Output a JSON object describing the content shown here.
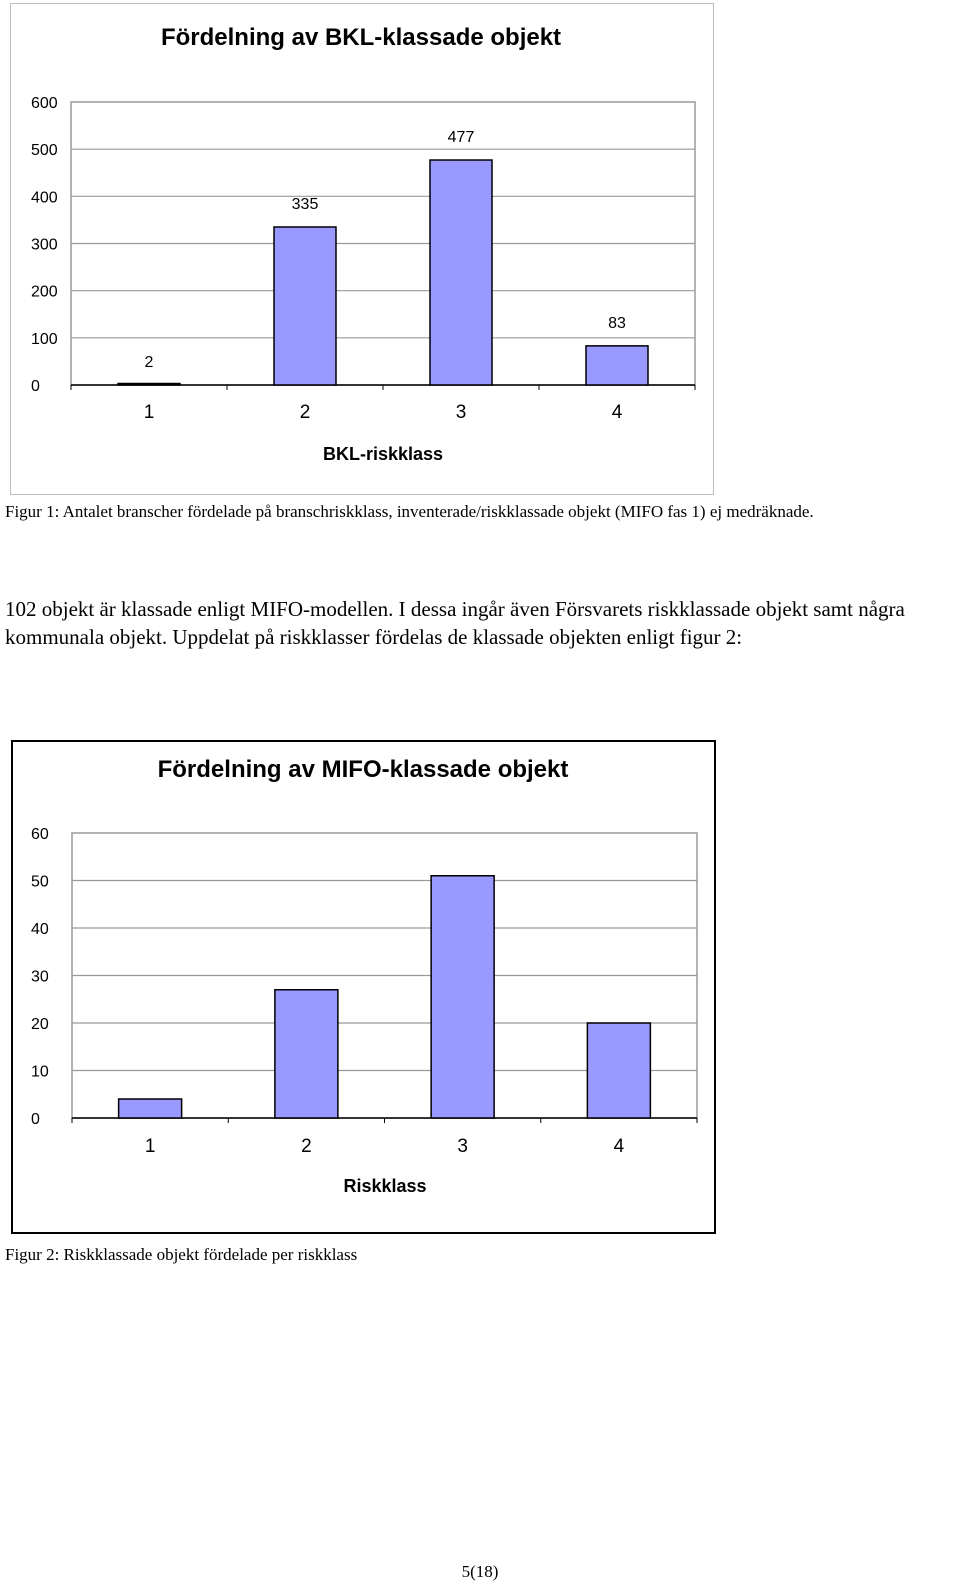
{
  "chart_data": [
    {
      "type": "bar",
      "title": "Fördelning av BKL-klassade objekt",
      "xlabel": "BKL-riskklass",
      "ylabel": "",
      "categories": [
        "1",
        "2",
        "3",
        "4"
      ],
      "values": [
        2,
        335,
        477,
        83
      ],
      "data_labels": [
        "2",
        "335",
        "477",
        "83"
      ],
      "ylim": [
        0,
        600
      ],
      "yticks": [
        "0",
        "100",
        "200",
        "300",
        "400",
        "500",
        "600"
      ],
      "grid": true,
      "legend": "none",
      "bar_color": "#9999ff"
    },
    {
      "type": "bar",
      "title": "Fördelning av MIFO-klassade objekt",
      "xlabel": "Riskklass",
      "ylabel": "",
      "categories": [
        "1",
        "2",
        "3",
        "4"
      ],
      "values": [
        4,
        27,
        51,
        20
      ],
      "ylim": [
        0,
        60
      ],
      "yticks": [
        "0",
        "10",
        "20",
        "30",
        "40",
        "50",
        "60"
      ],
      "grid": true,
      "legend": "none",
      "bar_color": "#9999ff"
    }
  ],
  "document": {
    "figure1_caption": "Figur 1: Antalet branscher fördelade på branschriskklass, inventerade/riskklassade objekt (MIFO fas 1) ej medräknade.",
    "paragraph": "102 objekt är klassade enligt MIFO-modellen. I dessa ingår även Försvarets riskklassade objekt samt några kommunala objekt. Uppdelat på riskklasser fördelas de klassade objekten enligt figur 2:",
    "figure2_caption": "Figur 2: Riskklassade objekt fördelade per riskklass",
    "page_number": "5(18)"
  }
}
